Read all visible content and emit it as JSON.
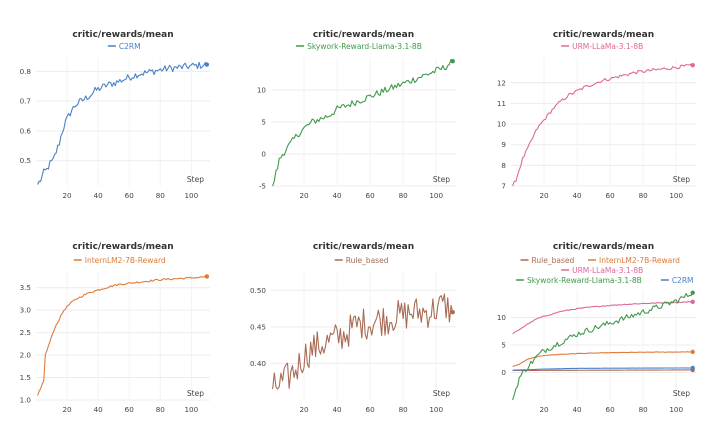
{
  "charts": [
    {
      "title": "critic/rewards/mean",
      "xlabel": "Step",
      "xlim": [
        0,
        112
      ],
      "ylim": [
        0.415,
        0.845
      ],
      "xticks": [
        20,
        40,
        60,
        80,
        100
      ],
      "yticks": [
        0.5,
        0.6,
        0.7,
        0.8
      ],
      "yfmt": 1,
      "series": [
        {
          "name": "C2RM",
          "color": "#4a80c8",
          "points": [
            [
              1,
              0.42
            ],
            [
              3,
              0.435
            ],
            [
              5,
              0.46
            ],
            [
              7,
              0.47
            ],
            [
              9,
              0.49
            ],
            [
              11,
              0.5
            ],
            [
              13,
              0.53
            ],
            [
              15,
              0.56
            ],
            [
              17,
              0.6
            ],
            [
              19,
              0.63
            ],
            [
              21,
              0.65
            ],
            [
              23,
              0.67
            ],
            [
              26,
              0.69
            ],
            [
              29,
              0.7
            ],
            [
              32,
              0.71
            ],
            [
              35,
              0.72
            ],
            [
              38,
              0.735
            ],
            [
              42,
              0.745
            ],
            [
              46,
              0.755
            ],
            [
              50,
              0.76
            ],
            [
              55,
              0.77
            ],
            [
              60,
              0.78
            ],
            [
              65,
              0.79
            ],
            [
              70,
              0.795
            ],
            [
              75,
              0.8
            ],
            [
              80,
              0.805
            ],
            [
              85,
              0.81
            ],
            [
              90,
              0.812
            ],
            [
              95,
              0.815
            ],
            [
              100,
              0.818
            ],
            [
              105,
              0.82
            ],
            [
              110,
              0.823
            ]
          ],
          "noise": 0.012
        }
      ]
    },
    {
      "title": "critic/rewards/mean",
      "xlabel": "Step",
      "xlim": [
        0,
        112
      ],
      "ylim": [
        -5,
        15
      ],
      "xticks": [
        20,
        40,
        60,
        80,
        100
      ],
      "yticks": [
        -5,
        0,
        5,
        10
      ],
      "yfmt": 0,
      "series": [
        {
          "name": "Skywork-Reward-Llama-3.1-8B",
          "color": "#3f9a4a",
          "points": [
            [
              1,
              -5
            ],
            [
              3,
              -3
            ],
            [
              5,
              -1
            ],
            [
              7,
              0
            ],
            [
              10,
              1
            ],
            [
              13,
              2
            ],
            [
              16,
              3
            ],
            [
              20,
              4
            ],
            [
              25,
              5
            ],
            [
              30,
              5.5
            ],
            [
              35,
              6
            ],
            [
              40,
              7
            ],
            [
              45,
              7.5
            ],
            [
              50,
              8
            ],
            [
              55,
              8.5
            ],
            [
              60,
              9
            ],
            [
              65,
              9.5
            ],
            [
              70,
              10
            ],
            [
              75,
              10.5
            ],
            [
              80,
              11
            ],
            [
              85,
              11.5
            ],
            [
              90,
              12
            ],
            [
              95,
              12.5
            ],
            [
              100,
              13
            ],
            [
              105,
              13.5
            ],
            [
              110,
              14.5
            ]
          ],
          "noise": 0.55
        }
      ]
    },
    {
      "title": "critic/rewards/mean",
      "xlabel": "Step",
      "xlim": [
        0,
        112
      ],
      "ylim": [
        7,
        13.2
      ],
      "xticks": [
        20,
        40,
        60,
        80,
        100
      ],
      "yticks": [
        7,
        8,
        9,
        10,
        11,
        12
      ],
      "yfmt": 0,
      "series": [
        {
          "name": "URM-LLaMa-3.1-8B",
          "color": "#e0679a",
          "points": [
            [
              1,
              7
            ],
            [
              3,
              7.3
            ],
            [
              5,
              7.8
            ],
            [
              7,
              8.3
            ],
            [
              10,
              8.8
            ],
            [
              13,
              9.3
            ],
            [
              16,
              9.8
            ],
            [
              20,
              10.2
            ],
            [
              25,
              10.7
            ],
            [
              30,
              11.1
            ],
            [
              35,
              11.4
            ],
            [
              40,
              11.6
            ],
            [
              45,
              11.8
            ],
            [
              50,
              11.95
            ],
            [
              55,
              12.1
            ],
            [
              60,
              12.2
            ],
            [
              65,
              12.3
            ],
            [
              70,
              12.4
            ],
            [
              75,
              12.5
            ],
            [
              80,
              12.55
            ],
            [
              85,
              12.6
            ],
            [
              90,
              12.65
            ],
            [
              95,
              12.7
            ],
            [
              100,
              12.75
            ],
            [
              105,
              12.8
            ],
            [
              110,
              12.85
            ]
          ],
          "noise": 0.08
        }
      ]
    },
    {
      "title": "critic/rewards/mean",
      "xlabel": "Step",
      "xlim": [
        0,
        112
      ],
      "ylim": [
        1,
        3.85
      ],
      "xticks": [
        20,
        40,
        60,
        80,
        100
      ],
      "yticks": [
        1,
        1.5,
        2,
        2.5,
        3,
        3.5
      ],
      "yfmt": 1,
      "series": [
        {
          "name": "InternLM2-7B-Reward",
          "color": "#e07b39",
          "points": [
            [
              1,
              1.1
            ],
            [
              3,
              1.25
            ],
            [
              5,
              1.45
            ],
            [
              6,
              2
            ],
            [
              8,
              2.2
            ],
            [
              10,
              2.4
            ],
            [
              12,
              2.6
            ],
            [
              15,
              2.8
            ],
            [
              18,
              3
            ],
            [
              22,
              3.15
            ],
            [
              26,
              3.25
            ],
            [
              30,
              3.32
            ],
            [
              35,
              3.4
            ],
            [
              40,
              3.45
            ],
            [
              45,
              3.5
            ],
            [
              50,
              3.55
            ],
            [
              55,
              3.58
            ],
            [
              60,
              3.6
            ],
            [
              65,
              3.62
            ],
            [
              70,
              3.64
            ],
            [
              75,
              3.66
            ],
            [
              80,
              3.68
            ],
            [
              85,
              3.69
            ],
            [
              90,
              3.7
            ],
            [
              95,
              3.71
            ],
            [
              100,
              3.72
            ],
            [
              105,
              3.73
            ],
            [
              110,
              3.75
            ]
          ],
          "noise": 0.02
        }
      ]
    },
    {
      "title": "critic/rewards/mean",
      "xlabel": "Step",
      "xlim": [
        0,
        112
      ],
      "ylim": [
        0.35,
        0.525
      ],
      "xticks": [
        20,
        40,
        60,
        80,
        100
      ],
      "yticks": [
        0.4,
        0.45,
        0.5
      ],
      "yfmt": 2,
      "series": [
        {
          "name": "Rule_based",
          "color": "#a86b55",
          "points": [
            [
              1,
              0.365
            ],
            [
              4,
              0.37
            ],
            [
              8,
              0.375
            ],
            [
              12,
              0.385
            ],
            [
              16,
              0.395
            ],
            [
              20,
              0.41
            ],
            [
              25,
              0.42
            ],
            [
              30,
              0.425
            ],
            [
              35,
              0.43
            ],
            [
              40,
              0.435
            ],
            [
              45,
              0.44
            ],
            [
              50,
              0.45
            ],
            [
              55,
              0.455
            ],
            [
              60,
              0.455
            ],
            [
              65,
              0.46
            ],
            [
              70,
              0.46
            ],
            [
              75,
              0.465
            ],
            [
              80,
              0.465
            ],
            [
              85,
              0.47
            ],
            [
              90,
              0.47
            ],
            [
              95,
              0.47
            ],
            [
              100,
              0.475
            ],
            [
              105,
              0.48
            ],
            [
              110,
              0.47
            ]
          ],
          "noise": 0.022
        }
      ]
    },
    {
      "title": "critic/rewards/mean",
      "xlabel": "Step",
      "xlim": [
        0,
        112
      ],
      "ylim": [
        -5,
        15
      ],
      "xticks": [
        20,
        40,
        60,
        80,
        100
      ],
      "yticks": [
        0,
        5,
        10
      ],
      "yfmt": 0,
      "series": [
        {
          "name": "Rule_based",
          "color": "#a86b55",
          "points": [
            [
              1,
              0.37
            ],
            [
              110,
              0.47
            ]
          ],
          "noise": 0
        },
        {
          "name": "InternLM2-7B-Reward",
          "color": "#e07b39",
          "points": [
            [
              1,
              1.1
            ],
            [
              5,
              1.5
            ],
            [
              10,
              2.4
            ],
            [
              15,
              2.8
            ],
            [
              20,
              3.1
            ],
            [
              30,
              3.3
            ],
            [
              40,
              3.45
            ],
            [
              60,
              3.6
            ],
            [
              80,
              3.68
            ],
            [
              110,
              3.75
            ]
          ],
          "noise": 0.04
        },
        {
          "name": "URM-LLaMa-3.1-8B",
          "color": "#e0679a",
          "points": [
            [
              1,
              7
            ],
            [
              5,
              7.8
            ],
            [
              10,
              8.8
            ],
            [
              16,
              9.8
            ],
            [
              20,
              10.2
            ],
            [
              30,
              11.1
            ],
            [
              40,
              11.6
            ],
            [
              50,
              11.95
            ],
            [
              60,
              12.2
            ],
            [
              70,
              12.4
            ],
            [
              80,
              12.55
            ],
            [
              90,
              12.65
            ],
            [
              100,
              12.75
            ],
            [
              110,
              12.85
            ]
          ],
          "noise": 0.08
        },
        {
          "name": "Skywork-Reward-Llama-3.1-8B",
          "color": "#3f9a4a",
          "points": [
            [
              1,
              -5
            ],
            [
              3,
              -3
            ],
            [
              5,
              -1
            ],
            [
              10,
              1
            ],
            [
              16,
              3
            ],
            [
              20,
              4
            ],
            [
              30,
              5.5
            ],
            [
              40,
              7
            ],
            [
              50,
              8
            ],
            [
              60,
              9
            ],
            [
              70,
              10
            ],
            [
              80,
              11
            ],
            [
              90,
              12
            ],
            [
              100,
              13
            ],
            [
              110,
              14.5
            ]
          ],
          "noise": 0.55
        },
        {
          "name": "C2RM",
          "color": "#4a80c8",
          "points": [
            [
              1,
              0.42
            ],
            [
              10,
              0.5
            ],
            [
              20,
              0.63
            ],
            [
              40,
              0.745
            ],
            [
              60,
              0.78
            ],
            [
              80,
              0.805
            ],
            [
              110,
              0.823
            ]
          ],
          "noise": 0.01
        }
      ]
    }
  ]
}
